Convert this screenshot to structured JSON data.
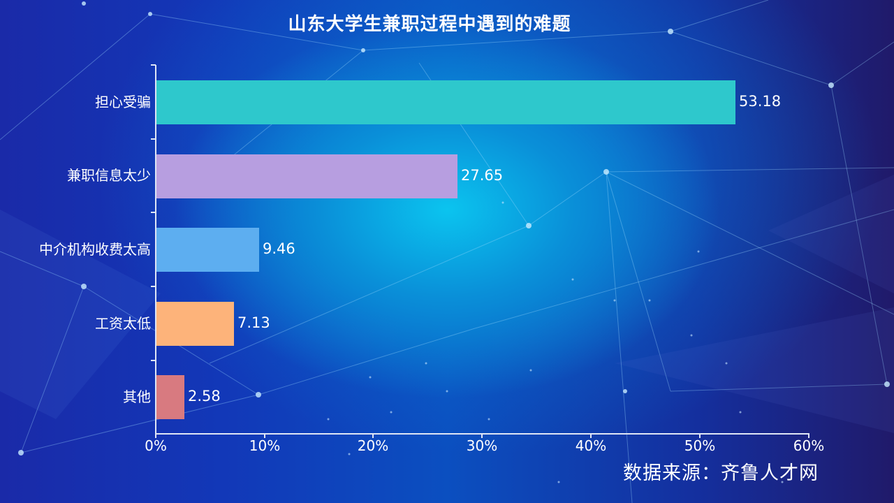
{
  "title": "山东大学生兼职过程中遇到的难题",
  "source": "数据来源：齐鲁人才网",
  "chart_data": {
    "type": "bar",
    "orientation": "horizontal",
    "title": "山东大学生兼职过程中遇到的难题",
    "xlabel": "",
    "ylabel": "",
    "xlim": [
      0,
      60
    ],
    "x_tick_labels": [
      "0%",
      "10%",
      "20%",
      "30%",
      "40%",
      "50%",
      "60%"
    ],
    "categories": [
      "担心受骗",
      "兼职信息太少",
      "中介机构收费太高",
      "工资太低",
      "其他"
    ],
    "values": [
      53.18,
      27.65,
      9.46,
      7.13,
      2.58
    ],
    "value_labels": [
      "53.18",
      "27.65",
      "9.46",
      "7.13",
      "2.58"
    ],
    "colors": [
      "#2ec8cc",
      "#b79ee0",
      "#5daef0",
      "#fdb37a",
      "#d87a80"
    ],
    "grid": false,
    "legend": "none",
    "annotation": "数据来源：齐鲁人才网"
  }
}
